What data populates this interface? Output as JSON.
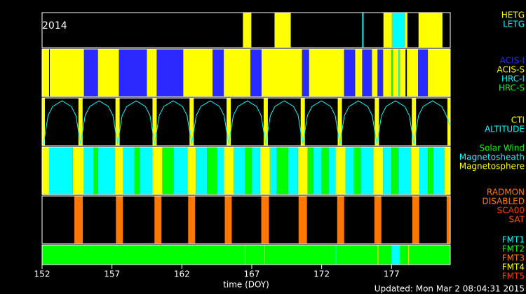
{
  "chart_data": {
    "type": "timeline",
    "title": "2014",
    "xlabel": "time (DOY)",
    "footer": "Updated: Mon Mar  2 08:04:31 2015",
    "xlim": [
      152,
      181.2
    ],
    "xticks": [
      152,
      157,
      162,
      167,
      172,
      177
    ],
    "panels": [
      {
        "labels": [
          {
            "name": "HETG",
            "color": "#ffff00"
          },
          {
            "name": "LETG",
            "color": "#00ffff"
          }
        ],
        "segments": [
          {
            "start": 166.37,
            "end": 166.97,
            "state": "HETG"
          },
          {
            "start": 168.63,
            "end": 169.79,
            "state": "HETG"
          },
          {
            "start": 174.9,
            "end": 175.0,
            "state": "LETG"
          },
          {
            "start": 176.42,
            "end": 177.03,
            "state": "HETG"
          },
          {
            "start": 177.03,
            "end": 177.93,
            "state": "LETG"
          },
          {
            "start": 177.93,
            "end": 178.13,
            "state": "HETG"
          },
          {
            "start": 178.93,
            "end": 180.64,
            "state": "HETG"
          }
        ]
      },
      {
        "labels": [
          {
            "name": "ACIS-I",
            "color": "#2a2aff"
          },
          {
            "name": "ACIS-S",
            "color": "#ffff00"
          },
          {
            "name": "HRC-I",
            "color": "#00ffff"
          },
          {
            "name": "HRC-S",
            "color": "#00ff00"
          }
        ],
        "segments": [
          {
            "start": 152.0,
            "end": 152.5,
            "state": "ACIS-S"
          },
          {
            "start": 152.55,
            "end": 155.0,
            "state": "ACIS-S"
          },
          {
            "start": 155.0,
            "end": 156.0,
            "state": "ACIS-I"
          },
          {
            "start": 156.0,
            "end": 157.5,
            "state": "ACIS-S"
          },
          {
            "start": 157.5,
            "end": 159.5,
            "state": "ACIS-I"
          },
          {
            "start": 159.5,
            "end": 160.2,
            "state": "ACIS-S"
          },
          {
            "start": 160.2,
            "end": 162.1,
            "state": "ACIS-I"
          },
          {
            "start": 162.1,
            "end": 164.2,
            "state": "ACIS-S"
          },
          {
            "start": 164.2,
            "end": 165.0,
            "state": "ACIS-I"
          },
          {
            "start": 165.0,
            "end": 166.9,
            "state": "ACIS-S"
          },
          {
            "start": 166.9,
            "end": 167.7,
            "state": "ACIS-I"
          },
          {
            "start": 167.7,
            "end": 170.6,
            "state": "ACIS-S"
          },
          {
            "start": 170.6,
            "end": 171.1,
            "state": "ACIS-I"
          },
          {
            "start": 171.1,
            "end": 173.6,
            "state": "ACIS-S"
          },
          {
            "start": 173.6,
            "end": 174.4,
            "state": "ACIS-I"
          },
          {
            "start": 174.4,
            "end": 174.9,
            "state": "ACIS-S"
          },
          {
            "start": 174.9,
            "end": 175.6,
            "state": "ACIS-I"
          },
          {
            "start": 175.6,
            "end": 176.0,
            "state": "ACIS-S"
          },
          {
            "start": 176.0,
            "end": 176.4,
            "state": "ACIS-I"
          },
          {
            "start": 176.4,
            "end": 177.0,
            "state": "ACIS-S"
          },
          {
            "start": 177.0,
            "end": 177.1,
            "state": "HRC-S"
          },
          {
            "start": 177.1,
            "end": 177.5,
            "state": "ACIS-S"
          },
          {
            "start": 177.5,
            "end": 177.6,
            "state": "HRC-I"
          },
          {
            "start": 177.6,
            "end": 178.0,
            "state": "ACIS-S"
          },
          {
            "start": 178.1,
            "end": 178.9,
            "state": "ACIS-S"
          },
          {
            "start": 178.9,
            "end": 179.6,
            "state": "ACIS-I"
          },
          {
            "start": 179.6,
            "end": 181.2,
            "state": "ACIS-S"
          }
        ]
      },
      {
        "labels": [
          {
            "name": "CTI",
            "color": "#ffff00"
          },
          {
            "name": "ALTITUDE",
            "color": "#00ffff"
          }
        ],
        "segments": [
          {
            "start": 152.0,
            "end": 152.2,
            "state": "CTI"
          },
          {
            "start": 154.6,
            "end": 154.9,
            "state": "CTI"
          },
          {
            "start": 157.25,
            "end": 157.55,
            "state": "CTI"
          },
          {
            "start": 159.9,
            "end": 160.2,
            "state": "CTI"
          },
          {
            "start": 162.55,
            "end": 162.85,
            "state": "CTI"
          },
          {
            "start": 165.2,
            "end": 165.5,
            "state": "CTI"
          },
          {
            "start": 167.85,
            "end": 168.15,
            "state": "CTI"
          },
          {
            "start": 170.5,
            "end": 170.8,
            "state": "CTI"
          },
          {
            "start": 173.15,
            "end": 173.45,
            "state": "CTI"
          },
          {
            "start": 175.8,
            "end": 176.1,
            "state": "CTI"
          },
          {
            "start": 178.45,
            "end": 178.75,
            "state": "CTI"
          },
          {
            "start": 181.0,
            "end": 181.2,
            "state": "CTI"
          }
        ],
        "line": {
          "name": "ALTITUDE",
          "ylim": [
            0,
            100
          ],
          "x": [
            152.1,
            152.43,
            152.76,
            153.43,
            154.09,
            154.42,
            154.75,
            155.08,
            155.41,
            156.08,
            156.74,
            157.07,
            157.4,
            157.73,
            158.06,
            158.73,
            159.39,
            159.72,
            160.05,
            160.38,
            160.71,
            161.38,
            162.04,
            162.37,
            162.7,
            163.03,
            163.36,
            164.03,
            164.69,
            165.02,
            165.35,
            165.68,
            166.01,
            166.68,
            167.34,
            167.67,
            168.0,
            168.33,
            168.66,
            169.33,
            169.99,
            170.32,
            170.65,
            170.98,
            171.31,
            171.98,
            172.64,
            172.97,
            173.3,
            173.63,
            173.96,
            174.63,
            175.29,
            175.62,
            175.95,
            176.28,
            176.61,
            177.28,
            177.94,
            178.27,
            178.6,
            178.93,
            179.26,
            179.93,
            180.59,
            180.92,
            181.2
          ],
          "values": [
            0,
            66,
            87,
            100,
            87,
            66,
            0,
            66,
            87,
            100,
            87,
            66,
            0,
            66,
            87,
            100,
            87,
            66,
            0,
            66,
            87,
            100,
            87,
            66,
            0,
            66,
            87,
            100,
            87,
            66,
            0,
            66,
            87,
            100,
            87,
            66,
            0,
            66,
            87,
            100,
            87,
            66,
            0,
            66,
            87,
            100,
            87,
            66,
            0,
            66,
            87,
            100,
            87,
            66,
            0,
            66,
            87,
            100,
            87,
            66,
            0,
            66,
            87,
            100,
            87,
            66,
            40
          ]
        }
      },
      {
        "labels": [
          {
            "name": "Solar Wind",
            "color": "#00ff00"
          },
          {
            "name": "Magnetosheath",
            "color": "#00ffff"
          },
          {
            "name": "Magnetosphere",
            "color": "#ffff00"
          }
        ],
        "segments": [
          {
            "start": 152.0,
            "end": 152.5,
            "state": "Magnetosphere"
          },
          {
            "start": 152.5,
            "end": 154.2,
            "state": "Magnetosheath"
          },
          {
            "start": 154.2,
            "end": 155.0,
            "state": "Magnetosphere"
          },
          {
            "start": 155.0,
            "end": 155.7,
            "state": "Magnetosheath"
          },
          {
            "start": 155.7,
            "end": 156.0,
            "state": "Solar Wind"
          },
          {
            "start": 156.0,
            "end": 157.2,
            "state": "Magnetosheath"
          },
          {
            "start": 157.2,
            "end": 157.8,
            "state": "Magnetosphere"
          },
          {
            "start": 157.8,
            "end": 158.6,
            "state": "Magnetosheath"
          },
          {
            "start": 158.6,
            "end": 159.0,
            "state": "Solar Wind"
          },
          {
            "start": 159.0,
            "end": 159.9,
            "state": "Magnetosheath"
          },
          {
            "start": 159.9,
            "end": 160.6,
            "state": "Magnetosphere"
          },
          {
            "start": 160.6,
            "end": 161.4,
            "state": "Solar Wind"
          },
          {
            "start": 161.4,
            "end": 162.4,
            "state": "Magnetosheath"
          },
          {
            "start": 162.4,
            "end": 163.0,
            "state": "Magnetosphere"
          },
          {
            "start": 163.0,
            "end": 163.8,
            "state": "Magnetosheath"
          },
          {
            "start": 163.8,
            "end": 164.5,
            "state": "Solar Wind"
          },
          {
            "start": 164.5,
            "end": 165.0,
            "state": "Magnetosheath"
          },
          {
            "start": 165.0,
            "end": 165.7,
            "state": "Magnetosphere"
          },
          {
            "start": 165.7,
            "end": 166.5,
            "state": "Magnetosheath"
          },
          {
            "start": 166.5,
            "end": 167.0,
            "state": "Solar Wind"
          },
          {
            "start": 167.0,
            "end": 167.6,
            "state": "Magnetosheath"
          },
          {
            "start": 167.6,
            "end": 168.3,
            "state": "Magnetosphere"
          },
          {
            "start": 168.3,
            "end": 168.8,
            "state": "Magnetosheath"
          },
          {
            "start": 168.8,
            "end": 169.6,
            "state": "Solar Wind"
          },
          {
            "start": 169.6,
            "end": 170.3,
            "state": "Magnetosheath"
          },
          {
            "start": 170.3,
            "end": 171.0,
            "state": "Magnetosphere"
          },
          {
            "start": 171.0,
            "end": 171.4,
            "state": "Solar Wind"
          },
          {
            "start": 171.4,
            "end": 172.0,
            "state": "Magnetosheath"
          },
          {
            "start": 172.0,
            "end": 172.5,
            "state": "Solar Wind"
          },
          {
            "start": 172.5,
            "end": 173.0,
            "state": "Magnetosheath"
          },
          {
            "start": 173.0,
            "end": 173.7,
            "state": "Magnetosphere"
          },
          {
            "start": 173.7,
            "end": 174.3,
            "state": "Magnetosheath"
          },
          {
            "start": 174.3,
            "end": 174.8,
            "state": "Solar Wind"
          },
          {
            "start": 174.8,
            "end": 175.7,
            "state": "Magnetosheath"
          },
          {
            "start": 175.7,
            "end": 176.4,
            "state": "Magnetosphere"
          },
          {
            "start": 176.4,
            "end": 177.0,
            "state": "Magnetosheath"
          },
          {
            "start": 177.0,
            "end": 177.5,
            "state": "Solar Wind"
          },
          {
            "start": 177.5,
            "end": 178.4,
            "state": "Magnetosheath"
          },
          {
            "start": 178.4,
            "end": 179.0,
            "state": "Magnetosphere"
          },
          {
            "start": 179.0,
            "end": 179.6,
            "state": "Magnetosheath"
          },
          {
            "start": 179.6,
            "end": 180.0,
            "state": "Solar Wind"
          },
          {
            "start": 180.0,
            "end": 180.8,
            "state": "Magnetosheath"
          },
          {
            "start": 180.8,
            "end": 181.2,
            "state": "Magnetosphere"
          }
        ]
      },
      {
        "labels": [
          {
            "name": "RADMON",
            "color": "#ff7700"
          },
          {
            "name": "DISABLED",
            "color": "#ff7700"
          },
          {
            "name": "SCA00",
            "color": "#ff3300"
          },
          {
            "name": "SAT",
            "color": "#ff5500"
          }
        ],
        "segments": [
          {
            "start": 154.31,
            "end": 154.91,
            "state": "DISABLED"
          },
          {
            "start": 157.28,
            "end": 157.78,
            "state": "DISABLED"
          },
          {
            "start": 160.04,
            "end": 160.54,
            "state": "DISABLED"
          },
          {
            "start": 162.45,
            "end": 162.95,
            "state": "DISABLED"
          },
          {
            "start": 165.07,
            "end": 165.57,
            "state": "DISABLED"
          },
          {
            "start": 167.68,
            "end": 168.23,
            "state": "DISABLED"
          },
          {
            "start": 170.35,
            "end": 170.95,
            "state": "DISABLED"
          },
          {
            "start": 173.11,
            "end": 173.61,
            "state": "DISABLED"
          },
          {
            "start": 175.77,
            "end": 176.27,
            "state": "DISABLED"
          },
          {
            "start": 178.48,
            "end": 178.98,
            "state": "DISABLED"
          },
          {
            "start": 180.94,
            "end": 181.2,
            "state": "DISABLED"
          }
        ]
      },
      {
        "labels": [
          {
            "name": "FMT1",
            "color": "#00ffff"
          },
          {
            "name": "FMT2",
            "color": "#00ff00"
          },
          {
            "name": "FMT3",
            "color": "#ff7700"
          },
          {
            "name": "FMT4",
            "color": "#ffff00"
          },
          {
            "name": "FMT5",
            "color": "#ff3300"
          }
        ],
        "segments": [
          {
            "start": 152.0,
            "end": 181.2,
            "state": "FMT2"
          },
          {
            "start": 166.5,
            "end": 166.55,
            "state": "FMT4"
          },
          {
            "start": 167.9,
            "end": 167.95,
            "state": "FMT4"
          },
          {
            "start": 173.0,
            "end": 173.05,
            "state": "FMT1"
          },
          {
            "start": 176.0,
            "end": 176.05,
            "state": "FMT4"
          },
          {
            "start": 177.0,
            "end": 177.6,
            "state": "FMT1"
          },
          {
            "start": 178.2,
            "end": 178.25,
            "state": "FMT4"
          }
        ]
      }
    ]
  }
}
